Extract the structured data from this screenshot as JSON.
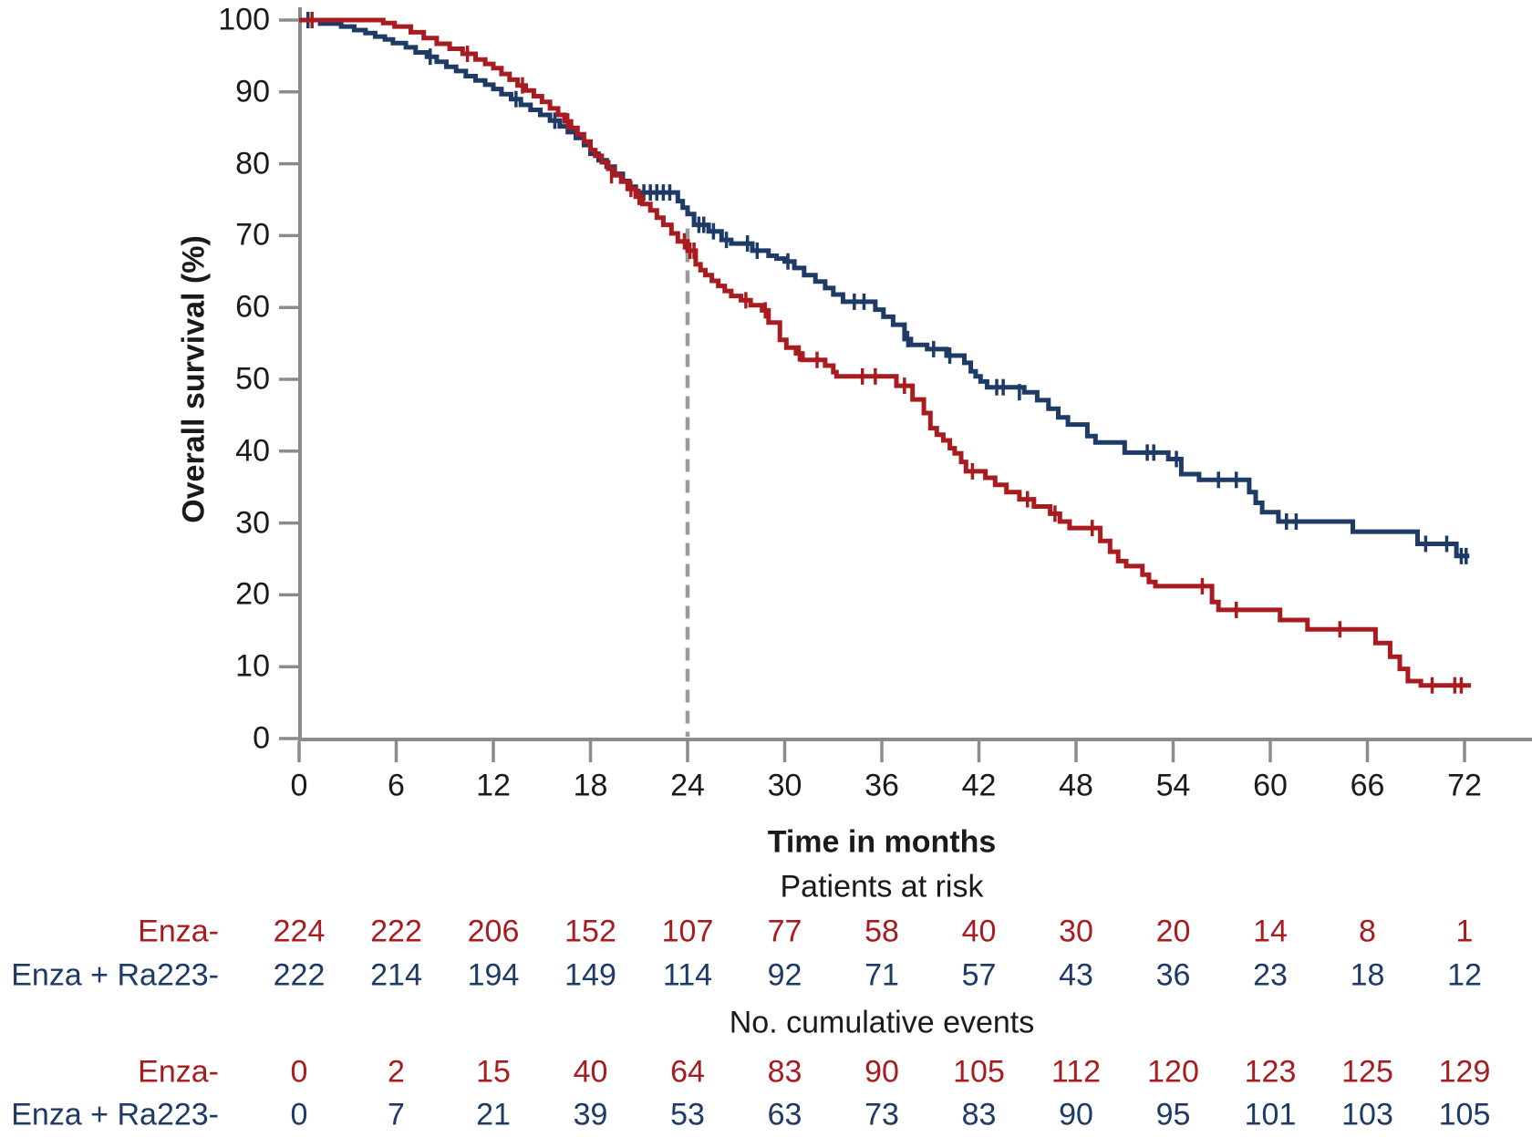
{
  "chart_data": {
    "type": "line",
    "subtype": "kaplan-meier-step",
    "xlabel": "Time in months",
    "ylabel": "Overall survival (%)",
    "xlim": [
      0,
      72
    ],
    "ylim": [
      0,
      100
    ],
    "x_ticks": [
      0,
      6,
      12,
      18,
      24,
      30,
      36,
      42,
      48,
      54,
      60,
      66,
      72
    ],
    "y_ticks": [
      0,
      10,
      20,
      30,
      40,
      50,
      60,
      70,
      80,
      90,
      100
    ],
    "grid": false,
    "legend": "none (series identified by colored row labels below plot)",
    "colors": {
      "axis": "#8b8b8b",
      "dashed_line": "#9a9a9a",
      "text": "#1a1a1a"
    },
    "reference_line": {
      "x": 24,
      "y_top_pct": 71,
      "style": "dashed-vertical"
    },
    "series": [
      {
        "name": "Enza-",
        "color": "#a81c20",
        "start_pct": 100,
        "end_time": 72.4,
        "survival_pct_at_ticks": [
          100,
          99.1,
          93.3,
          81.1,
          67.9,
          54.4,
          49.1,
          36.3,
          29.3,
          21.2,
          16.5,
          13.3,
          7.4
        ],
        "steps": [
          [
            5.2,
            99.6
          ],
          [
            5.9,
            99.1
          ],
          [
            6.9,
            98.3
          ],
          [
            7.7,
            97.5
          ],
          [
            8.5,
            96.7
          ],
          [
            9.3,
            96.0
          ],
          [
            10.1,
            95.3
          ],
          [
            10.9,
            94.5
          ],
          [
            11.5,
            93.9
          ],
          [
            12.0,
            93.3
          ],
          [
            12.5,
            92.5
          ],
          [
            13.0,
            91.7
          ],
          [
            13.5,
            90.9
          ],
          [
            14.0,
            90.2
          ],
          [
            14.5,
            89.4
          ],
          [
            15.0,
            88.6
          ],
          [
            15.5,
            87.7
          ],
          [
            16.0,
            86.8
          ],
          [
            16.4,
            85.9
          ],
          [
            16.8,
            85.0
          ],
          [
            17.2,
            84.1
          ],
          [
            17.6,
            83.1
          ],
          [
            18.0,
            81.9
          ],
          [
            18.3,
            81.1
          ],
          [
            18.7,
            80.2
          ],
          [
            19.1,
            79.3
          ],
          [
            19.5,
            78.4
          ],
          [
            19.9,
            77.5
          ],
          [
            20.3,
            76.5
          ],
          [
            20.8,
            75.4
          ],
          [
            21.2,
            74.4
          ],
          [
            21.7,
            73.5
          ],
          [
            22.1,
            72.5
          ],
          [
            22.5,
            71.5
          ],
          [
            23.0,
            70.3
          ],
          [
            23.4,
            69.2
          ],
          [
            24.0,
            67.9
          ],
          [
            24.5,
            66.0
          ],
          [
            24.8,
            65.2
          ],
          [
            25.1,
            64.5
          ],
          [
            25.5,
            63.7
          ],
          [
            25.9,
            63.0
          ],
          [
            26.3,
            62.3
          ],
          [
            26.7,
            61.6
          ],
          [
            27.3,
            61.0
          ],
          [
            27.9,
            60.3
          ],
          [
            28.6,
            59.6
          ],
          [
            29.0,
            57.9
          ],
          [
            29.7,
            55.5
          ],
          [
            30.1,
            54.4
          ],
          [
            30.7,
            53.6
          ],
          [
            31.1,
            52.7
          ],
          [
            32.5,
            51.9
          ],
          [
            33.0,
            51.0
          ],
          [
            33.2,
            50.4
          ],
          [
            36.9,
            49.1
          ],
          [
            37.9,
            47.2
          ],
          [
            38.6,
            45.3
          ],
          [
            39.0,
            43.2
          ],
          [
            39.4,
            42.3
          ],
          [
            39.8,
            41.5
          ],
          [
            40.2,
            40.4
          ],
          [
            40.5,
            39.7
          ],
          [
            40.9,
            38.5
          ],
          [
            41.2,
            37.2
          ],
          [
            42.4,
            36.3
          ],
          [
            43.0,
            35.3
          ],
          [
            43.7,
            34.3
          ],
          [
            44.5,
            33.3
          ],
          [
            45.4,
            32.3
          ],
          [
            46.4,
            31.3
          ],
          [
            47.0,
            30.2
          ],
          [
            47.6,
            29.3
          ],
          [
            49.5,
            27.5
          ],
          [
            50.1,
            26.0
          ],
          [
            50.6,
            24.7
          ],
          [
            51.1,
            24.0
          ],
          [
            52.1,
            22.8
          ],
          [
            52.5,
            21.8
          ],
          [
            52.9,
            21.2
          ],
          [
            56.4,
            19.0
          ],
          [
            56.8,
            17.9
          ],
          [
            60.6,
            16.5
          ],
          [
            62.3,
            15.2
          ],
          [
            66.5,
            13.3
          ],
          [
            67.4,
            11.4
          ],
          [
            68.0,
            9.7
          ],
          [
            68.5,
            8.0
          ],
          [
            69.3,
            7.4
          ]
        ],
        "censors": [
          [
            0.8,
            100
          ],
          [
            10.4,
            95.3
          ],
          [
            13.8,
            90.9
          ],
          [
            16.6,
            85.9
          ],
          [
            19.3,
            78.4
          ],
          [
            20.5,
            76.5
          ],
          [
            21.0,
            75.4
          ],
          [
            23.8,
            69.2
          ],
          [
            24.15,
            67.9
          ],
          [
            24.4,
            67.9
          ],
          [
            27.6,
            61.0
          ],
          [
            28.8,
            59.6
          ],
          [
            30.9,
            53.6
          ],
          [
            32.0,
            52.7
          ],
          [
            34.8,
            50.4
          ],
          [
            35.6,
            50.4
          ],
          [
            37.4,
            49.1
          ],
          [
            41.6,
            37.2
          ],
          [
            45.0,
            33.3
          ],
          [
            46.7,
            31.3
          ],
          [
            49.0,
            29.3
          ],
          [
            55.8,
            21.2
          ],
          [
            57.9,
            17.9
          ],
          [
            64.3,
            15.2
          ],
          [
            70.0,
            7.4
          ],
          [
            71.4,
            7.4
          ],
          [
            71.8,
            7.4
          ]
        ]
      },
      {
        "name": "Enza + Ra223-",
        "color": "#1e3a66",
        "start_pct": 100,
        "end_time": 72.3,
        "survival_pct_at_ticks": [
          100,
          96.8,
          90.4,
          81.4,
          73.0,
          66.4,
          58.7,
          49.7,
          43.7,
          38.4,
          30.2,
          28.8,
          25.4
        ],
        "steps": [
          [
            1.3,
            99.5
          ],
          [
            2.6,
            99.1
          ],
          [
            3.4,
            98.6
          ],
          [
            4.1,
            98.2
          ],
          [
            4.7,
            97.7
          ],
          [
            5.3,
            97.3
          ],
          [
            5.8,
            96.8
          ],
          [
            6.6,
            96.2
          ],
          [
            7.2,
            95.5
          ],
          [
            7.9,
            94.9
          ],
          [
            8.5,
            94.2
          ],
          [
            9.1,
            93.5
          ],
          [
            9.7,
            92.9
          ],
          [
            10.3,
            92.2
          ],
          [
            10.9,
            91.6
          ],
          [
            11.5,
            91.0
          ],
          [
            12.0,
            90.4
          ],
          [
            12.5,
            89.7
          ],
          [
            13.1,
            89.0
          ],
          [
            13.7,
            88.2
          ],
          [
            14.3,
            87.5
          ],
          [
            14.9,
            86.8
          ],
          [
            15.5,
            86.0
          ],
          [
            16.1,
            85.2
          ],
          [
            16.6,
            84.4
          ],
          [
            17.1,
            83.6
          ],
          [
            17.6,
            82.6
          ],
          [
            18.0,
            81.4
          ],
          [
            18.5,
            80.5
          ],
          [
            19.0,
            79.6
          ],
          [
            19.5,
            78.6
          ],
          [
            20.0,
            77.6
          ],
          [
            20.4,
            76.8
          ],
          [
            20.8,
            76.0
          ],
          [
            23.4,
            74.8
          ],
          [
            23.7,
            73.9
          ],
          [
            24.0,
            73.0
          ],
          [
            24.4,
            71.5
          ],
          [
            25.3,
            70.6
          ],
          [
            26.1,
            69.4
          ],
          [
            26.7,
            68.9
          ],
          [
            28.0,
            67.9
          ],
          [
            29.0,
            67.2
          ],
          [
            29.5,
            66.8
          ],
          [
            30.0,
            66.4
          ],
          [
            30.6,
            65.5
          ],
          [
            31.2,
            64.5
          ],
          [
            31.9,
            63.6
          ],
          [
            32.5,
            62.7
          ],
          [
            33.0,
            61.8
          ],
          [
            33.6,
            60.8
          ],
          [
            35.6,
            59.7
          ],
          [
            36.1,
            58.7
          ],
          [
            36.7,
            57.6
          ],
          [
            37.4,
            55.6
          ],
          [
            37.8,
            54.8
          ],
          [
            38.8,
            54.2
          ],
          [
            40.0,
            53.3
          ],
          [
            41.1,
            52.3
          ],
          [
            41.5,
            51.1
          ],
          [
            41.8,
            50.4
          ],
          [
            42.1,
            49.7
          ],
          [
            42.5,
            48.9
          ],
          [
            44.8,
            48.2
          ],
          [
            45.6,
            47.1
          ],
          [
            46.3,
            45.9
          ],
          [
            46.9,
            44.7
          ],
          [
            47.5,
            43.7
          ],
          [
            48.7,
            42.1
          ],
          [
            49.2,
            41.2
          ],
          [
            51.0,
            39.8
          ],
          [
            53.7,
            38.9
          ],
          [
            54.5,
            36.8
          ],
          [
            55.6,
            36.0
          ],
          [
            58.7,
            34.3
          ],
          [
            59.1,
            32.8
          ],
          [
            59.5,
            31.5
          ],
          [
            60.5,
            30.2
          ],
          [
            65.1,
            28.8
          ],
          [
            69.1,
            27.1
          ],
          [
            71.5,
            25.4
          ]
        ],
        "censors": [
          [
            0.55,
            100
          ],
          [
            8.1,
            94.9
          ],
          [
            13.4,
            89.0
          ],
          [
            15.8,
            86.0
          ],
          [
            21.3,
            76.0
          ],
          [
            21.7,
            76.0
          ],
          [
            22.1,
            76.0
          ],
          [
            22.5,
            76.0
          ],
          [
            22.9,
            76.0
          ],
          [
            24.7,
            71.5
          ],
          [
            25.0,
            71.5
          ],
          [
            25.6,
            70.6
          ],
          [
            26.4,
            69.4
          ],
          [
            27.7,
            68.9
          ],
          [
            28.3,
            67.9
          ],
          [
            30.2,
            66.4
          ],
          [
            34.3,
            60.8
          ],
          [
            34.9,
            60.8
          ],
          [
            37.6,
            55.6
          ],
          [
            39.2,
            54.2
          ],
          [
            40.2,
            53.3
          ],
          [
            43.1,
            48.9
          ],
          [
            43.5,
            48.9
          ],
          [
            44.5,
            48.2
          ],
          [
            52.4,
            39.8
          ],
          [
            52.8,
            39.8
          ],
          [
            54.2,
            38.9
          ],
          [
            56.8,
            36.0
          ],
          [
            57.9,
            36.0
          ],
          [
            61.0,
            30.2
          ],
          [
            61.6,
            30.2
          ],
          [
            69.6,
            27.1
          ],
          [
            70.9,
            27.1
          ],
          [
            71.8,
            25.4
          ],
          [
            72.1,
            25.4
          ]
        ]
      }
    ],
    "at_risk": {
      "header": "Patients at risk",
      "times": [
        0,
        6,
        12,
        18,
        24,
        30,
        36,
        42,
        48,
        54,
        60,
        66,
        72
      ],
      "rows": [
        {
          "label": "Enza-",
          "color": "#a81c20",
          "values": [
            224,
            222,
            206,
            152,
            107,
            77,
            58,
            40,
            30,
            20,
            14,
            8,
            1
          ]
        },
        {
          "label": "Enza + Ra223-",
          "color": "#1e3a66",
          "values": [
            222,
            214,
            194,
            149,
            114,
            92,
            71,
            57,
            43,
            36,
            23,
            18,
            12
          ]
        }
      ]
    },
    "cumulative_events": {
      "header": "No. cumulative events",
      "times": [
        0,
        6,
        12,
        18,
        24,
        30,
        36,
        42,
        48,
        54,
        60,
        66,
        72
      ],
      "rows": [
        {
          "label": "Enza-",
          "color": "#a81c20",
          "values": [
            0,
            2,
            15,
            40,
            64,
            83,
            90,
            105,
            112,
            120,
            123,
            125,
            129
          ]
        },
        {
          "label": "Enza + Ra223-",
          "color": "#1e3a66",
          "values": [
            0,
            7,
            21,
            39,
            53,
            63,
            73,
            83,
            90,
            95,
            101,
            103,
            105
          ]
        }
      ]
    }
  }
}
